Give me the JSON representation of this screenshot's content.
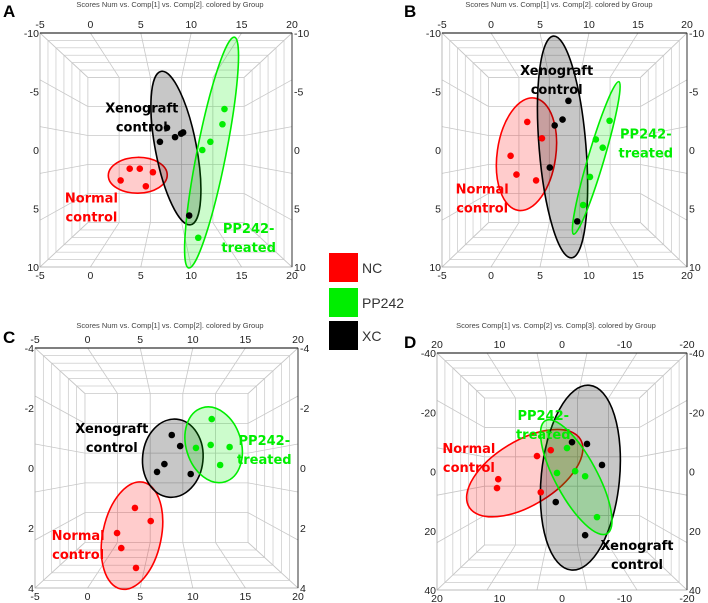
{
  "legend": [
    {
      "label": "NC",
      "color": "#ff0000"
    },
    {
      "label": "PP242",
      "color": "#00ee00"
    },
    {
      "label": "XC",
      "color": "#000000"
    }
  ],
  "chart_data": [
    {
      "letter": "A",
      "type": "scatter",
      "view": "3d-projection",
      "title": "Scores Num vs. Comp[1] vs. Comp[2]. colored by Group",
      "xlim": [
        -5,
        20
      ],
      "ylim": [
        -10,
        10
      ],
      "ticks_top": [
        "-5",
        "0",
        "5",
        "10",
        "15",
        "20"
      ],
      "ticks_bottom": [
        "-5",
        "0",
        "5",
        "10",
        "15",
        "20"
      ],
      "ticks_left": [
        "-10",
        "-5",
        "0",
        "5",
        "10"
      ],
      "ticks_right": [
        "-10",
        "-5",
        "0",
        "5",
        "10"
      ],
      "series": [
        {
          "name": "NC",
          "color": "#ff0000",
          "label": [
            "Normal",
            "control"
          ],
          "label_at": [
            0.1,
            4.5
          ],
          "points": [
            [
              3.0,
              2.6
            ],
            [
              3.9,
              1.6
            ],
            [
              4.9,
              1.6
            ],
            [
              6.2,
              1.9
            ],
            [
              5.5,
              3.1
            ]
          ]
        },
        {
          "name": "XC",
          "color": "#000000",
          "label": [
            "Xenograft",
            "control"
          ],
          "label_at": [
            5.1,
            -3.2
          ],
          "points": [
            [
              6.9,
              -0.7
            ],
            [
              7.6,
              -1.9
            ],
            [
              8.4,
              -1.1
            ],
            [
              9.0,
              -1.4
            ],
            [
              9.2,
              -1.5
            ],
            [
              9.8,
              5.6
            ]
          ]
        },
        {
          "name": "PP242",
          "color": "#00ee00",
          "label": [
            "PP242-",
            "treated"
          ],
          "label_at": [
            15.7,
            7.1
          ],
          "points": [
            [
              13.3,
              -3.5
            ],
            [
              13.1,
              -2.2
            ],
            [
              11.9,
              -0.7
            ],
            [
              11.1,
              0.0
            ],
            [
              10.7,
              7.5
            ]
          ]
        }
      ]
    },
    {
      "letter": "B",
      "type": "scatter",
      "view": "3d-projection",
      "title": "Scores Num vs. Comp[1] vs. Comp[2]. colored by Group",
      "xlim": [
        -5,
        20
      ],
      "ylim": [
        -10,
        10
      ],
      "ticks_top": [
        "-5",
        "0",
        "5",
        "10",
        "15",
        "20"
      ],
      "ticks_bottom": [
        "-5",
        "0",
        "5",
        "10",
        "15",
        "20"
      ],
      "ticks_left": [
        "-10",
        "-5",
        "0",
        "5",
        "10"
      ],
      "ticks_right": [
        "-10",
        "-5",
        "0",
        "5",
        "10"
      ],
      "series": [
        {
          "name": "NC",
          "color": "#ff0000",
          "label": [
            "Normal",
            "control"
          ],
          "label_at": [
            -0.9,
            3.7
          ],
          "points": [
            [
              3.7,
              -2.4
            ],
            [
              5.2,
              -1.0
            ],
            [
              2.0,
              0.5
            ],
            [
              2.6,
              2.1
            ],
            [
              4.6,
              2.6
            ]
          ]
        },
        {
          "name": "XC",
          "color": "#000000",
          "label": [
            "Xenograft",
            "control"
          ],
          "label_at": [
            6.7,
            -6.4
          ],
          "points": [
            [
              7.9,
              -4.2
            ],
            [
              7.3,
              -2.6
            ],
            [
              6.5,
              -2.1
            ],
            [
              6.0,
              1.5
            ],
            [
              8.8,
              6.1
            ]
          ]
        },
        {
          "name": "PP242",
          "color": "#00ee00",
          "label": [
            "PP242-",
            "treated"
          ],
          "label_at": [
            15.8,
            -1.0
          ],
          "points": [
            [
              12.1,
              -2.5
            ],
            [
              10.7,
              -0.9
            ],
            [
              11.4,
              -0.2
            ],
            [
              10.1,
              2.3
            ],
            [
              9.4,
              4.7
            ]
          ]
        }
      ]
    },
    {
      "letter": "C",
      "type": "scatter",
      "view": "3d-projection",
      "title": "Scores Num vs. Comp[1] vs. Comp[2]. colored by Group",
      "xlim": [
        -5,
        20
      ],
      "ylim": [
        -4,
        4
      ],
      "ticks_top": [
        "-5",
        "0",
        "5",
        "10",
        "15",
        "20"
      ],
      "ticks_bottom": [
        "-5",
        "0",
        "5",
        "10",
        "15",
        "20"
      ],
      "ticks_left": [
        "-4",
        "-2",
        "0",
        "2",
        "4"
      ],
      "ticks_right": [
        "-4",
        "-2",
        "0",
        "2",
        "4"
      ],
      "series": [
        {
          "name": "NC",
          "color": "#ff0000",
          "label": [
            "Normal",
            "control"
          ],
          "label_at": [
            -0.9,
            2.4
          ],
          "points": [
            [
              4.5,
              1.33
            ],
            [
              6.0,
              1.77
            ],
            [
              2.8,
              2.17
            ],
            [
              3.2,
              2.67
            ],
            [
              4.6,
              3.33
            ]
          ]
        },
        {
          "name": "XC",
          "color": "#000000",
          "label": [
            "Xenograft",
            "control"
          ],
          "label_at": [
            2.3,
            -1.17
          ],
          "points": [
            [
              8.0,
              -1.1
            ],
            [
              8.8,
              -0.73
            ],
            [
              7.3,
              -0.13
            ],
            [
              6.6,
              0.13
            ],
            [
              9.8,
              0.2
            ]
          ]
        },
        {
          "name": "PP242",
          "color": "#00ee00",
          "label": [
            "PP242-",
            "treated"
          ],
          "label_at": [
            16.8,
            -0.77
          ],
          "points": [
            [
              11.8,
              -1.63
            ],
            [
              11.7,
              -0.77
            ],
            [
              13.5,
              -0.7
            ],
            [
              10.3,
              -0.67
            ],
            [
              12.6,
              -0.1
            ]
          ]
        }
      ]
    },
    {
      "letter": "D",
      "type": "scatter",
      "view": "3d-projection",
      "title": "Scores Comp[1] vs. Comp[2] vs. Comp[3]. colored by Group",
      "xlim": [
        20,
        -20
      ],
      "ylim": [
        -40,
        40
      ],
      "ticks_top": [
        "20",
        "10",
        "0",
        "-10",
        "-20"
      ],
      "ticks_bottom": [
        "20",
        "10",
        "0",
        "-10",
        "-20"
      ],
      "ticks_left": [
        "-40",
        "-20",
        "0",
        "20",
        "40"
      ],
      "ticks_right": [
        "-40",
        "-20",
        "0",
        "20",
        "40"
      ],
      "series": [
        {
          "name": "NC",
          "color": "#ff0000",
          "label": [
            "Normal",
            "control"
          ],
          "label_at": [
            14.9,
            -6.2
          ],
          "points": [
            [
              1.8,
              -7.2
            ],
            [
              4.0,
              -5.2
            ],
            [
              10.2,
              2.6
            ],
            [
              10.4,
              5.6
            ],
            [
              3.4,
              7.0
            ]
          ]
        },
        {
          "name": "XC",
          "color": "#000000",
          "label": [
            "Xenograft",
            "control"
          ],
          "label_at": [
            -12.0,
            26.5
          ],
          "points": [
            [
              -1.6,
              -9.9
            ],
            [
              -4.0,
              -9.3
            ],
            [
              -6.4,
              -2.2
            ],
            [
              1.0,
              10.3
            ],
            [
              -3.7,
              21.5
            ]
          ]
        },
        {
          "name": "PP242",
          "color": "#00ee00",
          "label": [
            "PP242-",
            "treated"
          ],
          "label_at": [
            3.0,
            -17.4
          ],
          "points": [
            [
              -0.8,
              -7.9
            ],
            [
              0.8,
              0.5
            ],
            [
              -2.1,
              -0.1
            ],
            [
              -3.7,
              1.6
            ],
            [
              -5.6,
              15.4
            ]
          ]
        }
      ]
    }
  ]
}
